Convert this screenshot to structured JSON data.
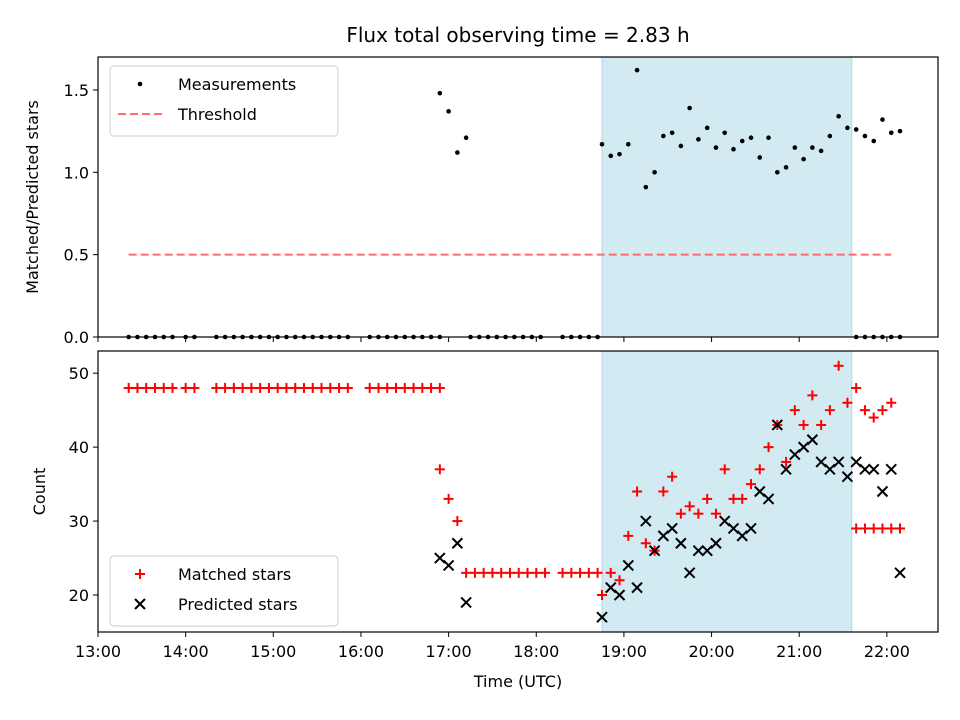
{
  "figure_title": "Flux total observing time = 2.83 h",
  "colors": {
    "marker": "#000000",
    "threshold": "#ff6b6b",
    "matched": "#ff0000",
    "predicted": "#000000",
    "shade": "#add8e6"
  },
  "chart_data": [
    {
      "type": "scatter",
      "title": "Flux total observing time = 2.83 h",
      "xlabel": "",
      "ylabel": "Matched/Predicted stars",
      "xlim": [
        "13:00",
        "22:35"
      ],
      "ylim": [
        0,
        1.7
      ],
      "yticks": [
        "0.0",
        "0.5",
        "1.0",
        "1.5"
      ],
      "grid": false,
      "legend_position": "upper-left",
      "shaded_span": {
        "x_start": "18:45",
        "x_end": "21:36"
      },
      "series": [
        {
          "name": "Measurements",
          "kind": "dots",
          "points": [
            [
              "13:21",
              0
            ],
            [
              "13:27",
              0
            ],
            [
              "13:33",
              0
            ],
            [
              "13:39",
              0
            ],
            [
              "13:45",
              0
            ],
            [
              "13:51",
              0
            ],
            [
              "14:00",
              0
            ],
            [
              "14:06",
              0
            ],
            [
              "14:21",
              0
            ],
            [
              "14:27",
              0
            ],
            [
              "14:33",
              0
            ],
            [
              "14:39",
              0
            ],
            [
              "14:45",
              0
            ],
            [
              "14:51",
              0
            ],
            [
              "14:57",
              0
            ],
            [
              "15:03",
              0
            ],
            [
              "15:09",
              0
            ],
            [
              "15:15",
              0
            ],
            [
              "15:21",
              0
            ],
            [
              "15:27",
              0
            ],
            [
              "15:33",
              0
            ],
            [
              "15:39",
              0
            ],
            [
              "15:45",
              0
            ],
            [
              "15:51",
              0
            ],
            [
              "16:06",
              0
            ],
            [
              "16:12",
              0
            ],
            [
              "16:18",
              0
            ],
            [
              "16:24",
              0
            ],
            [
              "16:30",
              0
            ],
            [
              "16:36",
              0
            ],
            [
              "16:42",
              0
            ],
            [
              "16:48",
              0
            ],
            [
              "16:54",
              0
            ],
            [
              "16:54",
              1.48
            ],
            [
              "17:00",
              1.37
            ],
            [
              "17:06",
              1.12
            ],
            [
              "17:12",
              1.21
            ],
            [
              "17:15",
              0
            ],
            [
              "17:21",
              0
            ],
            [
              "17:27",
              0
            ],
            [
              "17:33",
              0
            ],
            [
              "17:39",
              0
            ],
            [
              "17:45",
              0
            ],
            [
              "17:51",
              0
            ],
            [
              "17:57",
              0
            ],
            [
              "18:03",
              0
            ],
            [
              "18:18",
              0
            ],
            [
              "18:24",
              0
            ],
            [
              "18:30",
              0
            ],
            [
              "18:36",
              0
            ],
            [
              "18:42",
              0
            ],
            [
              "18:45",
              1.17
            ],
            [
              "18:51",
              1.1
            ],
            [
              "18:57",
              1.11
            ],
            [
              "19:03",
              1.17
            ],
            [
              "19:09",
              1.62
            ],
            [
              "19:15",
              0.91
            ],
            [
              "19:21",
              1.0
            ],
            [
              "19:27",
              1.22
            ],
            [
              "19:33",
              1.24
            ],
            [
              "19:39",
              1.16
            ],
            [
              "19:45",
              1.39
            ],
            [
              "19:51",
              1.2
            ],
            [
              "19:57",
              1.27
            ],
            [
              "20:03",
              1.15
            ],
            [
              "20:09",
              1.24
            ],
            [
              "20:15",
              1.14
            ],
            [
              "20:21",
              1.19
            ],
            [
              "20:27",
              1.21
            ],
            [
              "20:33",
              1.09
            ],
            [
              "20:39",
              1.21
            ],
            [
              "20:45",
              1.0
            ],
            [
              "20:51",
              1.03
            ],
            [
              "20:57",
              1.15
            ],
            [
              "21:03",
              1.08
            ],
            [
              "21:09",
              1.15
            ],
            [
              "21:15",
              1.13
            ],
            [
              "21:21",
              1.22
            ],
            [
              "21:27",
              1.34
            ],
            [
              "21:33",
              1.27
            ],
            [
              "21:39",
              1.26
            ],
            [
              "21:45",
              1.22
            ],
            [
              "21:51",
              1.19
            ],
            [
              "21:57",
              1.32
            ],
            [
              "22:03",
              1.24
            ],
            [
              "22:09",
              1.25
            ],
            [
              "21:39",
              0
            ],
            [
              "21:45",
              0
            ],
            [
              "21:51",
              0
            ],
            [
              "21:57",
              0
            ],
            [
              "22:03",
              0
            ],
            [
              "22:09",
              0
            ]
          ]
        },
        {
          "name": "Threshold",
          "kind": "dashed-line",
          "points": [
            [
              "13:21",
              0.5
            ],
            [
              "22:03",
              0.5
            ]
          ]
        }
      ]
    },
    {
      "type": "scatter",
      "title": "",
      "xlabel": "Time (UTC)",
      "ylabel": "Count",
      "xlim": [
        "13:00",
        "22:35"
      ],
      "ylim": [
        15,
        53
      ],
      "xticks": [
        "13:00",
        "14:00",
        "15:00",
        "16:00",
        "17:00",
        "18:00",
        "19:00",
        "20:00",
        "21:00",
        "22:00"
      ],
      "yticks": [
        "20",
        "30",
        "40",
        "50"
      ],
      "grid": false,
      "legend_position": "lower-left",
      "shaded_span": {
        "x_start": "18:45",
        "x_end": "21:36"
      },
      "series": [
        {
          "name": "Matched stars",
          "marker": "plus",
          "points": [
            [
              "13:21",
              48
            ],
            [
              "13:27",
              48
            ],
            [
              "13:33",
              48
            ],
            [
              "13:39",
              48
            ],
            [
              "13:45",
              48
            ],
            [
              "13:51",
              48
            ],
            [
              "14:00",
              48
            ],
            [
              "14:06",
              48
            ],
            [
              "14:21",
              48
            ],
            [
              "14:27",
              48
            ],
            [
              "14:33",
              48
            ],
            [
              "14:39",
              48
            ],
            [
              "14:45",
              48
            ],
            [
              "14:51",
              48
            ],
            [
              "14:57",
              48
            ],
            [
              "15:03",
              48
            ],
            [
              "15:09",
              48
            ],
            [
              "15:15",
              48
            ],
            [
              "15:21",
              48
            ],
            [
              "15:27",
              48
            ],
            [
              "15:33",
              48
            ],
            [
              "15:39",
              48
            ],
            [
              "15:45",
              48
            ],
            [
              "15:51",
              48
            ],
            [
              "16:06",
              48
            ],
            [
              "16:12",
              48
            ],
            [
              "16:18",
              48
            ],
            [
              "16:24",
              48
            ],
            [
              "16:30",
              48
            ],
            [
              "16:36",
              48
            ],
            [
              "16:42",
              48
            ],
            [
              "16:48",
              48
            ],
            [
              "16:54",
              48
            ],
            [
              "16:54",
              37
            ],
            [
              "17:00",
              33
            ],
            [
              "17:06",
              30
            ],
            [
              "17:12",
              23
            ],
            [
              "17:18",
              23
            ],
            [
              "17:24",
              23
            ],
            [
              "17:30",
              23
            ],
            [
              "17:36",
              23
            ],
            [
              "17:42",
              23
            ],
            [
              "17:48",
              23
            ],
            [
              "17:54",
              23
            ],
            [
              "18:00",
              23
            ],
            [
              "18:06",
              23
            ],
            [
              "18:18",
              23
            ],
            [
              "18:24",
              23
            ],
            [
              "18:30",
              23
            ],
            [
              "18:36",
              23
            ],
            [
              "18:42",
              23
            ],
            [
              "18:45",
              20
            ],
            [
              "18:51",
              23
            ],
            [
              "18:57",
              22
            ],
            [
              "19:03",
              28
            ],
            [
              "19:09",
              34
            ],
            [
              "19:15",
              27
            ],
            [
              "19:21",
              26
            ],
            [
              "19:27",
              34
            ],
            [
              "19:33",
              36
            ],
            [
              "19:39",
              31
            ],
            [
              "19:45",
              32
            ],
            [
              "19:51",
              31
            ],
            [
              "19:57",
              33
            ],
            [
              "20:03",
              31
            ],
            [
              "20:09",
              37
            ],
            [
              "20:15",
              33
            ],
            [
              "20:21",
              33
            ],
            [
              "20:27",
              35
            ],
            [
              "20:33",
              37
            ],
            [
              "20:39",
              40
            ],
            [
              "20:45",
              43
            ],
            [
              "20:51",
              38
            ],
            [
              "20:57",
              45
            ],
            [
              "21:03",
              43
            ],
            [
              "21:09",
              47
            ],
            [
              "21:15",
              43
            ],
            [
              "21:21",
              45
            ],
            [
              "21:27",
              51
            ],
            [
              "21:33",
              46
            ],
            [
              "21:39",
              48
            ],
            [
              "21:45",
              45
            ],
            [
              "21:51",
              44
            ],
            [
              "21:57",
              45
            ],
            [
              "22:03",
              46
            ],
            [
              "22:09",
              29
            ],
            [
              "21:39",
              29
            ],
            [
              "21:45",
              29
            ],
            [
              "21:51",
              29
            ],
            [
              "21:57",
              29
            ],
            [
              "22:03",
              29
            ],
            [
              "22:09",
              29
            ]
          ]
        },
        {
          "name": "Predicted stars",
          "marker": "x",
          "points": [
            [
              "16:54",
              25
            ],
            [
              "17:00",
              24
            ],
            [
              "17:06",
              27
            ],
            [
              "17:12",
              19
            ],
            [
              "18:45",
              17
            ],
            [
              "18:51",
              21
            ],
            [
              "18:57",
              20
            ],
            [
              "19:03",
              24
            ],
            [
              "19:09",
              21
            ],
            [
              "19:15",
              30
            ],
            [
              "19:21",
              26
            ],
            [
              "19:27",
              28
            ],
            [
              "19:33",
              29
            ],
            [
              "19:39",
              27
            ],
            [
              "19:45",
              23
            ],
            [
              "19:51",
              26
            ],
            [
              "19:57",
              26
            ],
            [
              "20:03",
              27
            ],
            [
              "20:09",
              30
            ],
            [
              "20:15",
              29
            ],
            [
              "20:21",
              28
            ],
            [
              "20:27",
              29
            ],
            [
              "20:33",
              34
            ],
            [
              "20:39",
              33
            ],
            [
              "20:45",
              43
            ],
            [
              "20:51",
              37
            ],
            [
              "20:57",
              39
            ],
            [
              "21:03",
              40
            ],
            [
              "21:09",
              41
            ],
            [
              "21:15",
              38
            ],
            [
              "21:21",
              37
            ],
            [
              "21:27",
              38
            ],
            [
              "21:33",
              36
            ],
            [
              "21:39",
              38
            ],
            [
              "21:45",
              37
            ],
            [
              "21:51",
              37
            ],
            [
              "21:57",
              34
            ],
            [
              "22:03",
              37
            ],
            [
              "22:09",
              23
            ]
          ]
        }
      ]
    }
  ]
}
